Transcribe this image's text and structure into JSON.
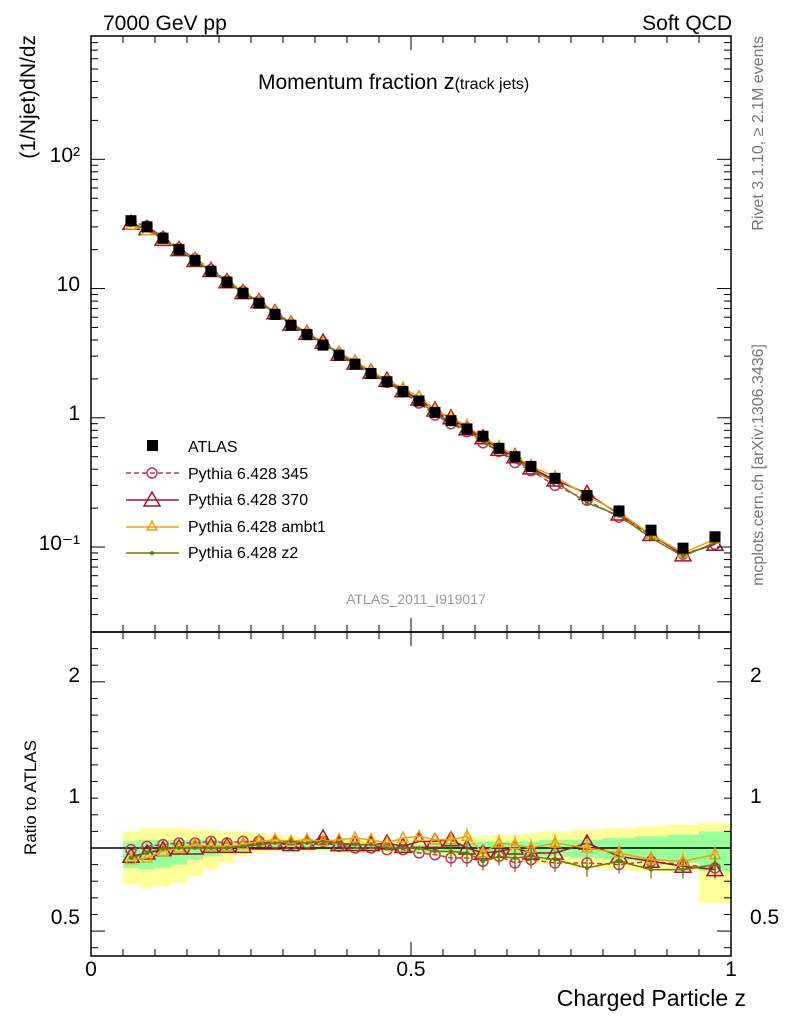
{
  "header": {
    "left": "7000 GeV pp",
    "right": "Soft QCD"
  },
  "side_labels": {
    "rivet": "Rivet 3.1.10, ≥ 2.1M events",
    "mcplots": "mcplots.cern.ch [arXiv:1306.3436]"
  },
  "chart_data": [
    {
      "type": "line",
      "title": "Momentum fraction z(track jets)",
      "title_main": "Momentum fraction ",
      "title_z": "z",
      "title_sub": "(track jets)",
      "ylabel": "(1/Njet)dN/dz",
      "xlabel": "",
      "log_y": true,
      "xlim": [
        0,
        1.0
      ],
      "ylim": [
        0.022,
        900
      ],
      "y_tick_labels": [
        "10⁻¹",
        "1",
        "10",
        "10²"
      ],
      "watermark": "ATLAS_2011_I919017",
      "legend_position": "lower-left",
      "x": [
        0.0625,
        0.0875,
        0.1125,
        0.1375,
        0.1625,
        0.1875,
        0.2125,
        0.2375,
        0.2625,
        0.2875,
        0.3125,
        0.3375,
        0.3625,
        0.3875,
        0.4125,
        0.4375,
        0.4625,
        0.4875,
        0.5125,
        0.5375,
        0.5625,
        0.5875,
        0.6125,
        0.6375,
        0.6625,
        0.6875,
        0.725,
        0.775,
        0.825,
        0.875,
        0.925,
        0.975
      ],
      "series": [
        {
          "name": "ATLAS",
          "color": "#000000",
          "marker": "square",
          "values": [
            33.5,
            30.0,
            24.5,
            20.0,
            16.5,
            13.6,
            11.2,
            9.2,
            7.7,
            6.3,
            5.2,
            4.4,
            3.65,
            3.05,
            2.6,
            2.2,
            1.9,
            1.6,
            1.35,
            1.1,
            0.95,
            0.82,
            0.72,
            0.58,
            0.5,
            0.42,
            0.34,
            0.25,
            0.19,
            0.135,
            0.098,
            0.12
          ]
        },
        {
          "name": "Pythia 6.428 345",
          "color": "#c0395a",
          "marker": "circle",
          "dashed": true,
          "values": [
            33.0,
            30.5,
            25.0,
            20.5,
            17.0,
            14.0,
            11.5,
            9.5,
            8.0,
            6.5,
            5.3,
            4.5,
            3.8,
            3.1,
            2.6,
            2.2,
            1.88,
            1.58,
            1.3,
            1.05,
            0.9,
            0.78,
            0.64,
            0.55,
            0.45,
            0.39,
            0.3,
            0.23,
            0.17,
            0.125,
            0.088,
            0.105
          ]
        },
        {
          "name": "Pythia 6.428 370",
          "color": "#a0142c",
          "marker": "triangle",
          "values": [
            32.0,
            29.0,
            24.0,
            20.0,
            16.5,
            13.8,
            11.3,
            9.3,
            7.9,
            6.5,
            5.3,
            4.5,
            3.85,
            3.1,
            2.65,
            2.25,
            1.95,
            1.62,
            1.4,
            1.15,
            1.0,
            0.82,
            0.7,
            0.57,
            0.5,
            0.41,
            0.33,
            0.26,
            0.18,
            0.125,
            0.087,
            0.105
          ]
        },
        {
          "name": "Pythia 6.428 ambt1",
          "color": "#f0a010",
          "marker": "triangle-open-small",
          "values": [
            31.0,
            28.0,
            24.0,
            20.0,
            16.8,
            13.8,
            11.3,
            9.4,
            8.0,
            6.6,
            5.4,
            4.6,
            3.8,
            3.2,
            2.75,
            2.3,
            1.95,
            1.7,
            1.45,
            1.15,
            1.0,
            0.87,
            0.7,
            0.6,
            0.51,
            0.42,
            0.35,
            0.25,
            0.185,
            0.125,
            0.09,
            0.115
          ]
        },
        {
          "name": "Pythia 6.428 z2",
          "color": "#6b7a10",
          "marker": "dot",
          "values": [
            31.5,
            29.0,
            24.5,
            20.0,
            16.5,
            13.6,
            11.2,
            9.3,
            7.9,
            6.5,
            5.4,
            4.5,
            3.8,
            3.15,
            2.65,
            2.25,
            1.9,
            1.6,
            1.35,
            1.08,
            0.93,
            0.8,
            0.66,
            0.55,
            0.47,
            0.4,
            0.32,
            0.22,
            0.175,
            0.118,
            0.085,
            0.108
          ]
        }
      ]
    },
    {
      "type": "line",
      "title": "",
      "xlabel": "Charged Particle z",
      "ylabel": "Ratio to ATLAS",
      "xlim": [
        0,
        1.0
      ],
      "ylim": [
        0.35,
        2.3
      ],
      "x_ticks": [
        "0",
        "0.5",
        "1"
      ],
      "y_ticks": [
        "0.5",
        "1",
        "2"
      ],
      "y_tick_values": [
        0.5,
        1,
        2
      ],
      "x_tick_values": [
        0,
        0.5,
        1
      ],
      "reference_line": 1.0,
      "bands": {
        "x_edges": [
          0.05,
          0.075,
          0.1,
          0.125,
          0.15,
          0.175,
          0.2,
          0.225,
          0.25,
          0.275,
          0.3,
          0.325,
          0.35,
          0.375,
          0.4,
          0.425,
          0.45,
          0.475,
          0.5,
          0.525,
          0.55,
          0.575,
          0.6,
          0.625,
          0.65,
          0.675,
          0.7,
          0.75,
          0.8,
          0.85,
          0.9,
          0.95,
          1.0
        ],
        "yellow_lo": [
          0.78,
          0.76,
          0.77,
          0.79,
          0.83,
          0.87,
          0.91,
          0.95,
          0.97,
          0.98,
          0.98,
          0.98,
          0.98,
          0.97,
          0.97,
          0.97,
          0.97,
          0.96,
          0.96,
          0.95,
          0.94,
          0.93,
          0.93,
          0.92,
          0.92,
          0.91,
          0.9,
          0.88,
          0.87,
          0.86,
          0.86,
          0.67
        ],
        "yellow_hi": [
          1.1,
          1.12,
          1.12,
          1.12,
          1.11,
          1.11,
          1.1,
          1.1,
          1.09,
          1.08,
          1.07,
          1.06,
          1.05,
          1.05,
          1.05,
          1.05,
          1.05,
          1.05,
          1.05,
          1.06,
          1.06,
          1.07,
          1.07,
          1.08,
          1.08,
          1.09,
          1.1,
          1.11,
          1.12,
          1.13,
          1.14,
          1.15
        ],
        "green_lo": [
          0.88,
          0.87,
          0.88,
          0.9,
          0.93,
          0.95,
          0.97,
          0.98,
          0.99,
          0.99,
          0.99,
          0.99,
          0.99,
          0.98,
          0.98,
          0.98,
          0.98,
          0.98,
          0.97,
          0.97,
          0.97,
          0.96,
          0.96,
          0.96,
          0.95,
          0.95,
          0.95,
          0.94,
          0.93,
          0.92,
          0.91,
          0.86
        ],
        "green_hi": [
          1.04,
          1.05,
          1.05,
          1.05,
          1.05,
          1.05,
          1.04,
          1.04,
          1.04,
          1.03,
          1.03,
          1.03,
          1.02,
          1.02,
          1.02,
          1.02,
          1.02,
          1.02,
          1.02,
          1.03,
          1.03,
          1.03,
          1.04,
          1.04,
          1.04,
          1.04,
          1.05,
          1.05,
          1.06,
          1.07,
          1.08,
          1.1
        ]
      },
      "series": [
        {
          "name": "Pythia 6.428 345",
          "color": "#c0395a",
          "marker": "circle",
          "dashed": true,
          "values": [
            0.99,
            1.01,
            1.02,
            1.03,
            1.03,
            1.04,
            1.03,
            1.04,
            1.04,
            1.03,
            1.02,
            1.03,
            1.04,
            1.01,
            1.0,
            1.0,
            0.99,
            0.99,
            0.97,
            0.96,
            0.94,
            0.94,
            0.92,
            0.95,
            0.91,
            0.93,
            0.91,
            0.91,
            0.9,
            0.92,
            0.9,
            0.88
          ]
        },
        {
          "name": "Pythia 6.428 370",
          "color": "#a0142c",
          "marker": "triangle",
          "values": [
            0.95,
            0.97,
            0.99,
            1.0,
            1.0,
            1.01,
            1.01,
            1.01,
            1.03,
            1.03,
            1.02,
            1.03,
            1.06,
            1.02,
            1.02,
            1.02,
            1.03,
            1.01,
            1.04,
            1.04,
            1.05,
            1.0,
            0.97,
            0.98,
            1.0,
            0.97,
            0.97,
            1.03,
            0.95,
            0.92,
            0.89,
            0.87
          ]
        },
        {
          "name": "Pythia 6.428 ambt1",
          "color": "#f0a010",
          "marker": "triangle-open-small",
          "values": [
            0.93,
            0.94,
            0.98,
            1.0,
            1.02,
            1.01,
            1.01,
            1.02,
            1.04,
            1.05,
            1.04,
            1.05,
            1.04,
            1.05,
            1.06,
            1.05,
            1.03,
            1.06,
            1.07,
            1.05,
            1.05,
            1.07,
            0.97,
            1.03,
            1.02,
            1.0,
            1.03,
            1.0,
            0.97,
            0.93,
            0.92,
            0.96
          ]
        },
        {
          "name": "Pythia 6.428 z2",
          "color": "#6b7a10",
          "marker": "dot",
          "values": [
            0.94,
            0.97,
            1.0,
            1.0,
            1.0,
            1.0,
            1.0,
            1.01,
            1.02,
            1.03,
            1.04,
            1.03,
            1.04,
            1.03,
            1.02,
            1.02,
            1.0,
            1.0,
            1.0,
            0.98,
            0.98,
            0.97,
            0.92,
            0.95,
            0.94,
            0.95,
            0.93,
            0.88,
            0.92,
            0.87,
            0.87,
            0.9
          ]
        }
      ]
    }
  ]
}
